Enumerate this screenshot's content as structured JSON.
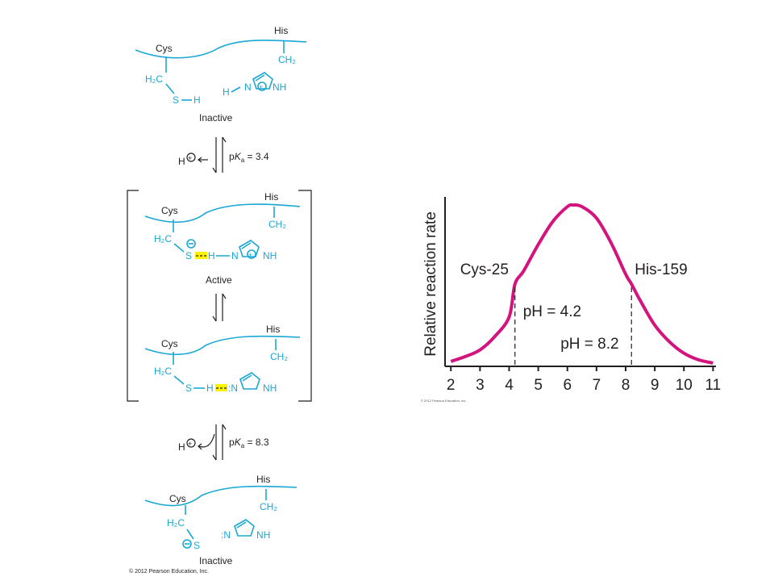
{
  "scheme": {
    "states": [
      {
        "label": "Inactive",
        "cys": "Cys",
        "his": "His",
        "h2c": "H₂C",
        "ch2": "CH₂",
        "s": "S",
        "h": "H",
        "n": "N",
        "nh": "NH"
      },
      {
        "label": "Active",
        "cys": "Cys",
        "his": "His",
        "h2c": "H₂C",
        "ch2": "CH₂",
        "s": "S",
        "h": "H",
        "n": "N",
        "nh": "NH"
      },
      {
        "label": "",
        "cys": "Cys",
        "his": "His",
        "h2c": "H₂C",
        "ch2": "CH₂",
        "s": "S",
        "h": "H",
        "n": ":N",
        "nh": "NH"
      },
      {
        "label": "Inactive",
        "cys": "Cys",
        "his": "His",
        "h2c": "H₂C",
        "ch2": "CH₂",
        "s": "S",
        "n": ":N",
        "nh": "NH"
      }
    ],
    "eq1": {
      "proton": "H",
      "pka_prefix": "p",
      "pka_k": "K",
      "pka_sub": "a",
      "pka_value": " = 3.4"
    },
    "eq2": {
      "proton": "H",
      "pka_prefix": "p",
      "pka_k": "K",
      "pka_sub": "a",
      "pka_value": " = 8.3"
    },
    "copyright": "© 2012 Pearson Education, Inc."
  },
  "chart_data": {
    "type": "line",
    "ylabel": "Relative reaction rate",
    "xlabel": "",
    "xlim": [
      1.8,
      11.1
    ],
    "ylim": [
      0,
      1
    ],
    "xticks": [
      2,
      3,
      4,
      5,
      6,
      7,
      8,
      9,
      10,
      11
    ],
    "series": [
      {
        "color": "#d4147e",
        "x": [
          2,
          2.5,
          3,
          3.5,
          4,
          4.2,
          4.5,
          5,
          5.5,
          6,
          6.2,
          6.5,
          7,
          7.5,
          8,
          8.2,
          8.5,
          9,
          9.5,
          10,
          10.5,
          11
        ],
        "y": [
          0.03,
          0.06,
          0.1,
          0.18,
          0.3,
          0.5,
          0.58,
          0.74,
          0.88,
          0.97,
          0.98,
          0.97,
          0.9,
          0.75,
          0.56,
          0.5,
          0.4,
          0.25,
          0.15,
          0.08,
          0.04,
          0.02
        ]
      }
    ],
    "annotations": [
      {
        "text": "Cys-25",
        "x": 4.2
      },
      {
        "text": "His-159",
        "x": 8.2
      },
      {
        "text": "pH = 4.2",
        "x": 4.2
      },
      {
        "text": "pH = 8.2",
        "x": 8.2
      }
    ],
    "copyright": "© 2012 Pearson Education, Inc."
  }
}
